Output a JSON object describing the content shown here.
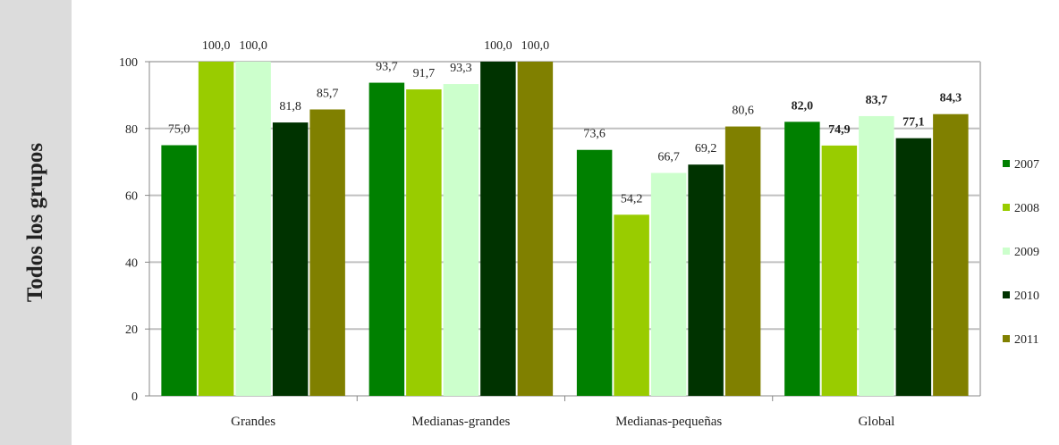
{
  "side_title": "Todos los grupos",
  "chart_data": {
    "type": "bar",
    "categories": [
      "Grandes",
      "Medianas-grandes",
      "Medianas-pequeñas",
      "Global"
    ],
    "series": [
      {
        "name": "2007",
        "color": "#008000",
        "values": [
          75.0,
          93.7,
          73.6,
          82.0
        ],
        "labels": [
          "75,0",
          "93,7",
          "73,6",
          "82,0"
        ]
      },
      {
        "name": "2008",
        "color": "#99cc00",
        "values": [
          100.0,
          91.7,
          54.2,
          74.9
        ],
        "labels": [
          "100,0",
          "91,7",
          "54,2",
          "74,9"
        ]
      },
      {
        "name": "2009",
        "color": "#ccffcc",
        "values": [
          100.0,
          93.3,
          66.7,
          83.7
        ],
        "labels": [
          "100,0",
          "93,3",
          "66,7",
          "83,7"
        ]
      },
      {
        "name": "2010",
        "color": "#003300",
        "values": [
          81.8,
          100.0,
          69.2,
          77.1
        ],
        "labels": [
          "81,8",
          "100,0",
          "69,2",
          "77,1"
        ]
      },
      {
        "name": "2011",
        "color": "#808000",
        "values": [
          85.7,
          100.0,
          80.6,
          84.3
        ],
        "labels": [
          "85,7",
          "100,0",
          "80,6",
          "84,3"
        ]
      }
    ],
    "bold_label_categories": [
      "Global"
    ],
    "yticks": [
      "0",
      "20",
      "40",
      "60",
      "80",
      "100"
    ],
    "ylim": [
      0,
      100
    ],
    "grid": true,
    "legend": "right"
  }
}
